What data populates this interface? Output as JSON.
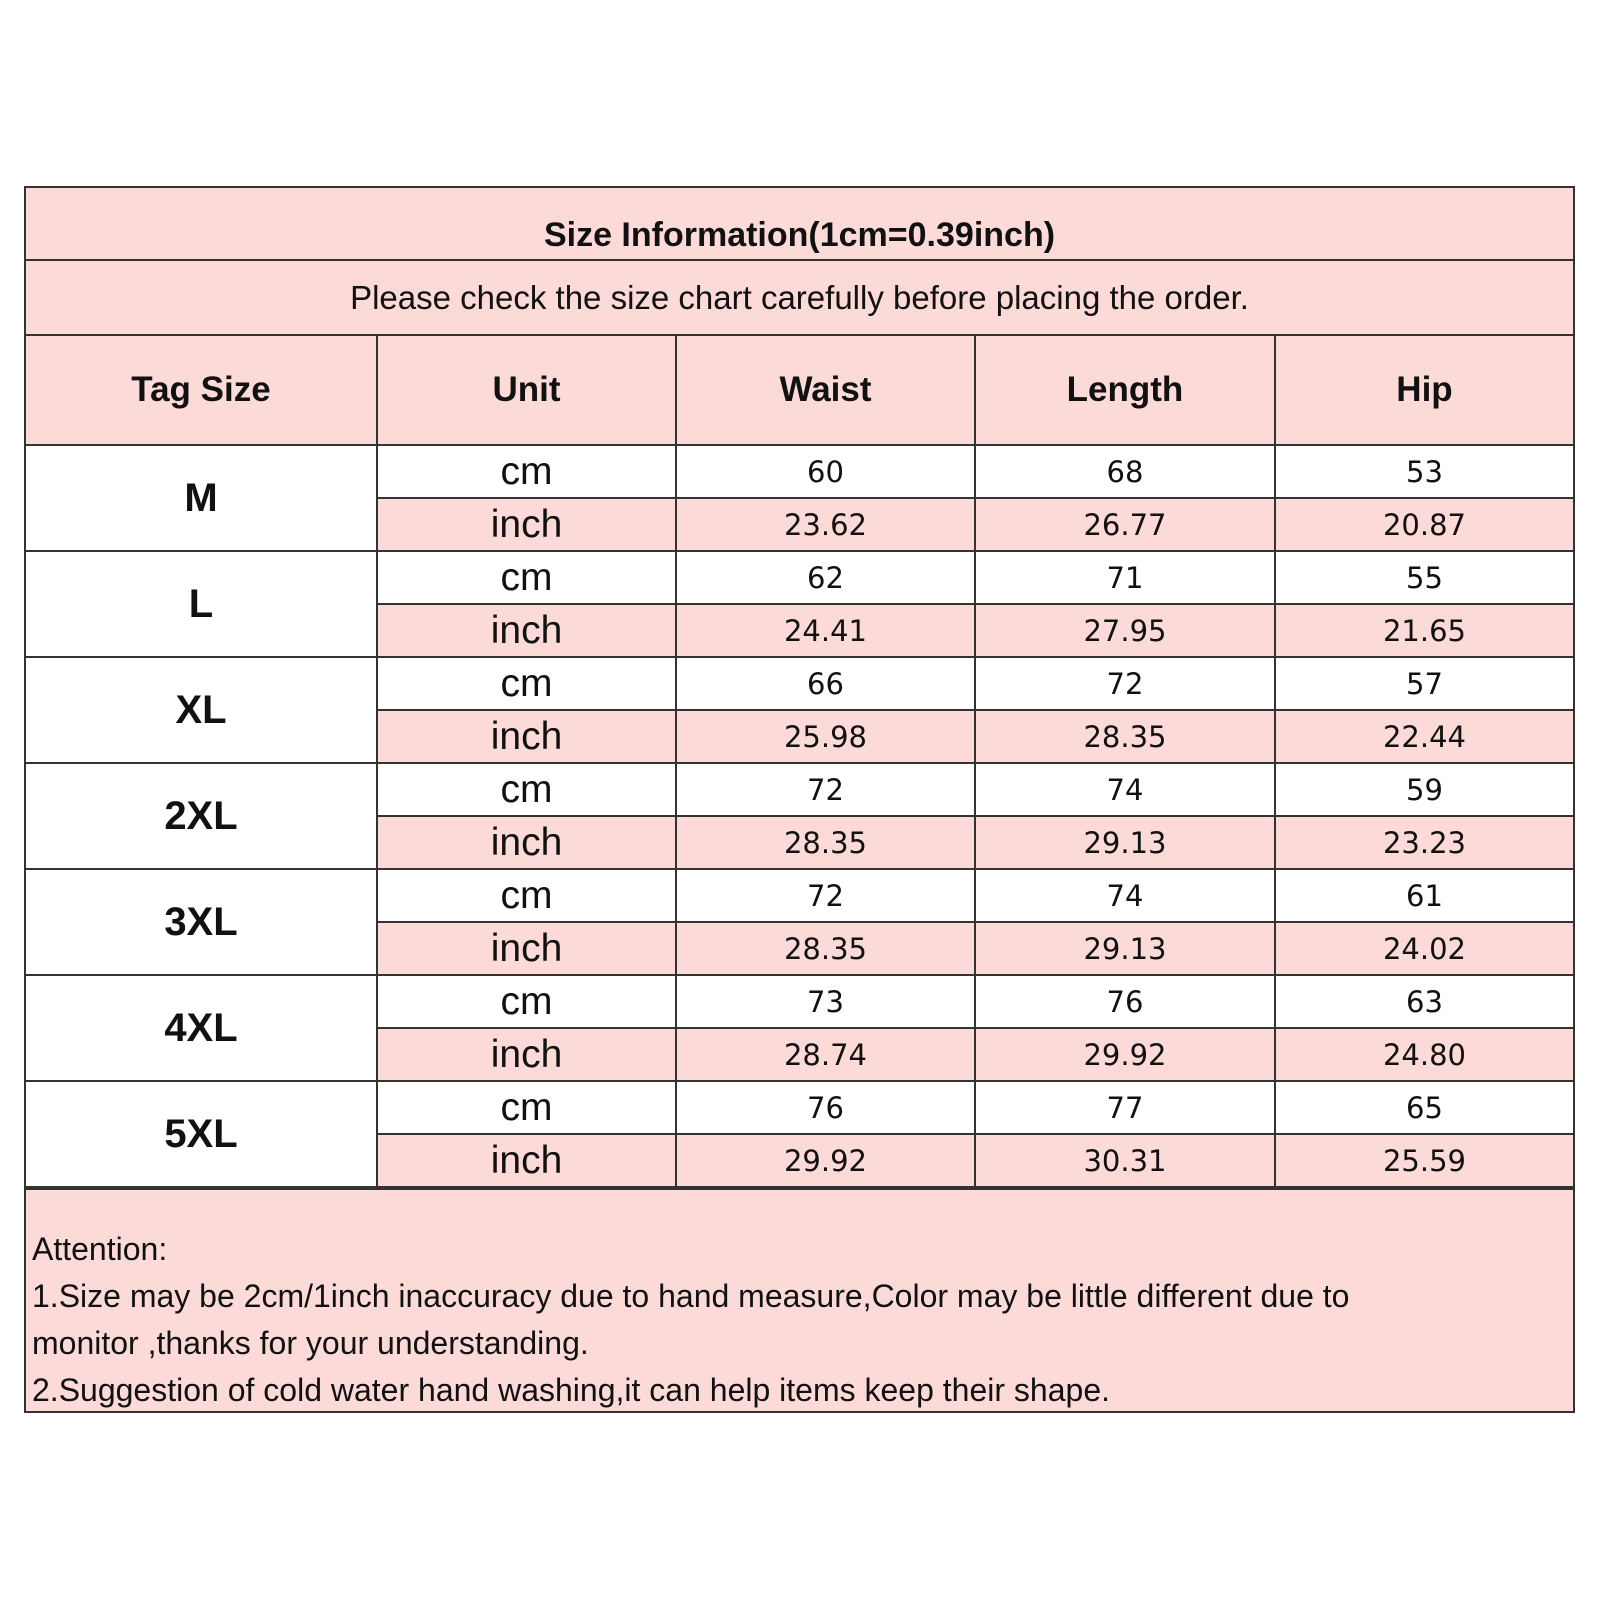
{
  "title": "Size Information(1cm=0.39inch)",
  "subtitle": "Please check the size chart carefully before placing the order.",
  "columns": [
    "Tag Size",
    "Unit",
    "Waist",
    "Length",
    "Hip"
  ],
  "rows": [
    {
      "size": "M",
      "cm": {
        "unit": "cm",
        "waist": "60",
        "length": "68",
        "hip": "53"
      },
      "inch": {
        "unit": "inch",
        "waist": "23.62",
        "length": "26.77",
        "hip": "20.87"
      }
    },
    {
      "size": "L",
      "cm": {
        "unit": "cm",
        "waist": "62",
        "length": "71",
        "hip": "55"
      },
      "inch": {
        "unit": "inch",
        "waist": "24.41",
        "length": "27.95",
        "hip": "21.65"
      }
    },
    {
      "size": "XL",
      "cm": {
        "unit": "cm",
        "waist": "66",
        "length": "72",
        "hip": "57"
      },
      "inch": {
        "unit": "inch",
        "waist": "25.98",
        "length": "28.35",
        "hip": "22.44"
      }
    },
    {
      "size": "2XL",
      "cm": {
        "unit": "cm",
        "waist": "72",
        "length": "74",
        "hip": "59"
      },
      "inch": {
        "unit": "inch",
        "waist": "28.35",
        "length": "29.13",
        "hip": "23.23"
      }
    },
    {
      "size": "3XL",
      "cm": {
        "unit": "cm",
        "waist": "72",
        "length": "74",
        "hip": "61"
      },
      "inch": {
        "unit": "inch",
        "waist": "28.35",
        "length": "29.13",
        "hip": "24.02"
      }
    },
    {
      "size": "4XL",
      "cm": {
        "unit": "cm",
        "waist": "73",
        "length": "76",
        "hip": "63"
      },
      "inch": {
        "unit": "inch",
        "waist": "28.74",
        "length": "29.92",
        "hip": "24.80"
      }
    },
    {
      "size": "5XL",
      "cm": {
        "unit": "cm",
        "waist": "76",
        "length": "77",
        "hip": "65"
      },
      "inch": {
        "unit": "inch",
        "waist": "29.92",
        "length": "30.31",
        "hip": "25.59"
      }
    }
  ],
  "notes": {
    "heading": "Attention:",
    "line1": "1.Size may be 2cm/1inch inaccuracy due to hand measure,Color may be little different due to",
    "line2": "monitor ,thanks for your understanding.",
    "line3": "2.Suggestion of cold water hand washing,it can help items keep their shape."
  },
  "colors": {
    "header_pink": "#fcdad8",
    "border": "#333333"
  }
}
